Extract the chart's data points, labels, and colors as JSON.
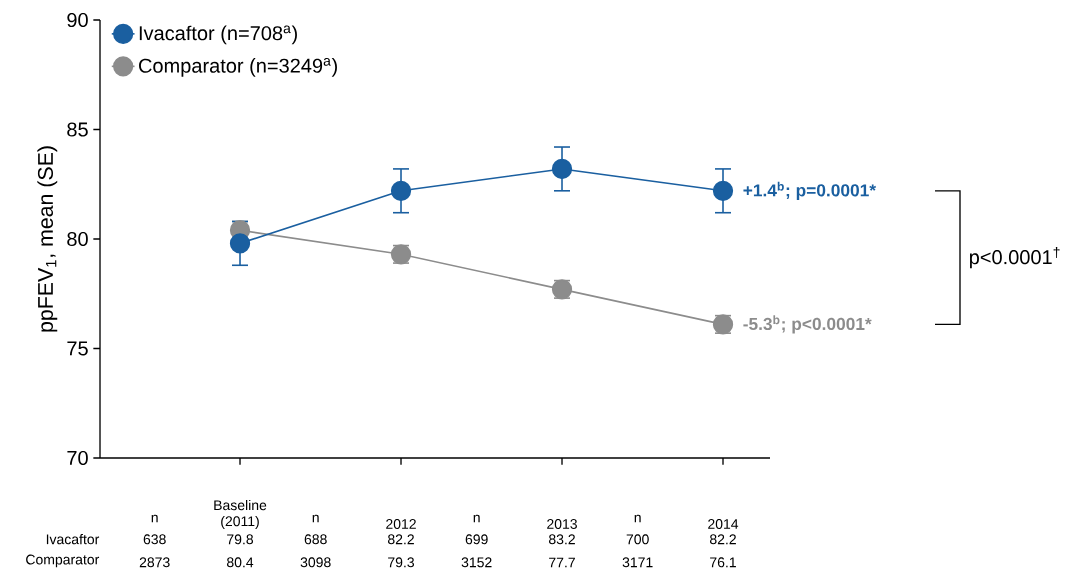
{
  "chart_data": {
    "type": "line",
    "ylabel": "ppFEV$_{1}$, mean (SE)",
    "categories": [
      "Baseline (2011)",
      "2012",
      "2013",
      "2014"
    ],
    "series": [
      {
        "name": "Ivacaftor (n=708$^{a}$)",
        "color": "#1a5fa0",
        "values": [
          79.8,
          82.2,
          83.2,
          82.2
        ],
        "errors": [
          1.0,
          1.0,
          1.0,
          1.0
        ]
      },
      {
        "name": "Comparator (n=3249$^{a}$)",
        "color": "#8c8c8c",
        "values": [
          80.4,
          79.3,
          77.7,
          76.1
        ],
        "errors": [
          0.4,
          0.4,
          0.4,
          0.4
        ]
      }
    ],
    "ylim": [
      70,
      90
    ],
    "yticks": [
      70,
      75,
      80,
      85,
      90
    ],
    "marker": "circle",
    "line_style": "solid",
    "legend": "top left",
    "grid": false,
    "data_labels": true,
    "annotations": [
      "+1.4$^{b}$; p=0.0001*",
      "-5.3$^{b}$; p<0.0001*",
      "p<0.0001$^{†}$",
      "Ivacaftor",
      "Comparator",
      "n",
      "638",
      "2873",
      "n",
      "688",
      "3098",
      "n",
      "699",
      "3152",
      "n",
      "700",
      "3171"
    ]
  }
}
